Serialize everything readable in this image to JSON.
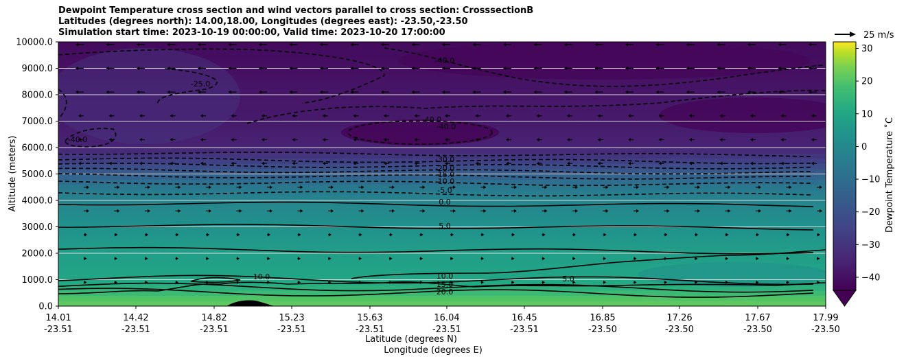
{
  "chart_data": {
    "type": "contour",
    "title_lines": [
      "Dewpoint Temperature cross section and wind vectors parallel to cross section: CrosssectionB",
      "Latitudes (degrees north): 14.00,18.00, Longitudes (degrees east): -23.50,-23.50",
      "Simulation start time: 2023-10-19 00:00:00, Valid time: 2023-10-20 17:00:00"
    ],
    "ylabel": "Altitude (meters)",
    "xlabel_lines": [
      "Latitude (degrees N)",
      "Longitude (degrees E)"
    ],
    "ylim": [
      0,
      10000
    ],
    "yticks": [
      "0.0",
      "1000.0",
      "2000.0",
      "3000.0",
      "4000.0",
      "5000.0",
      "6000.0",
      "7000.0",
      "8000.0",
      "9000.0",
      "10000.0"
    ],
    "xticks": [
      {
        "lat": "14.01",
        "lon": "-23.51"
      },
      {
        "lat": "14.42",
        "lon": "-23.51"
      },
      {
        "lat": "14.82",
        "lon": "-23.51"
      },
      {
        "lat": "15.23",
        "lon": "-23.51"
      },
      {
        "lat": "15.63",
        "lon": "-23.51"
      },
      {
        "lat": "16.04",
        "lon": "-23.51"
      },
      {
        "lat": "16.45",
        "lon": "-23.51"
      },
      {
        "lat": "16.85",
        "lon": "-23.50"
      },
      {
        "lat": "17.26",
        "lon": "-23.50"
      },
      {
        "lat": "17.67",
        "lon": "-23.50"
      },
      {
        "lat": "17.99",
        "lon": "-23.50"
      }
    ],
    "grid": "horizontal",
    "colorbar": {
      "label": "Dewpoint Temperature ˚C",
      "ticks": [
        "−40",
        "−30",
        "−20",
        "−10",
        "0",
        "10",
        "20",
        "30"
      ],
      "range": [
        -44,
        32
      ],
      "colormap": "viridis",
      "extend": "min"
    },
    "quiver_key": {
      "label": "25 m/s"
    },
    "contour_levels": [
      {
        "value": -40,
        "label": "-40.0"
      },
      {
        "value": -35,
        "label": "-35.0"
      },
      {
        "value": -30,
        "label": "-30.0"
      },
      {
        "value": -25,
        "label": "-25.0"
      },
      {
        "value": -20,
        "label": "-20.0"
      },
      {
        "value": -15,
        "label": "-15.0"
      },
      {
        "value": -10,
        "label": "-10.0"
      },
      {
        "value": -5,
        "label": "-5.0"
      },
      {
        "value": 0,
        "label": "0.0"
      },
      {
        "value": 5,
        "label": "5.0"
      },
      {
        "value": 10,
        "label": "10.0"
      },
      {
        "value": 15,
        "label": "15.0"
      },
      {
        "value": 20,
        "label": "20.0"
      }
    ],
    "dewpoint_profile": [
      {
        "z": 0,
        "t": 24
      },
      {
        "z": 300,
        "t": 22
      },
      {
        "z": 600,
        "t": 17
      },
      {
        "z": 1000,
        "t": 12
      },
      {
        "z": 2000,
        "t": 9
      },
      {
        "z": 3000,
        "t": 4
      },
      {
        "z": 4000,
        "t": -1
      },
      {
        "z": 4500,
        "t": -6
      },
      {
        "z": 5000,
        "t": -15
      },
      {
        "z": 5500,
        "t": -26
      },
      {
        "z": 6000,
        "t": -34
      },
      {
        "z": 7000,
        "t": -37
      },
      {
        "z": 8000,
        "t": -38
      },
      {
        "z": 9000,
        "t": -40
      },
      {
        "z": 10000,
        "t": -41
      }
    ]
  }
}
